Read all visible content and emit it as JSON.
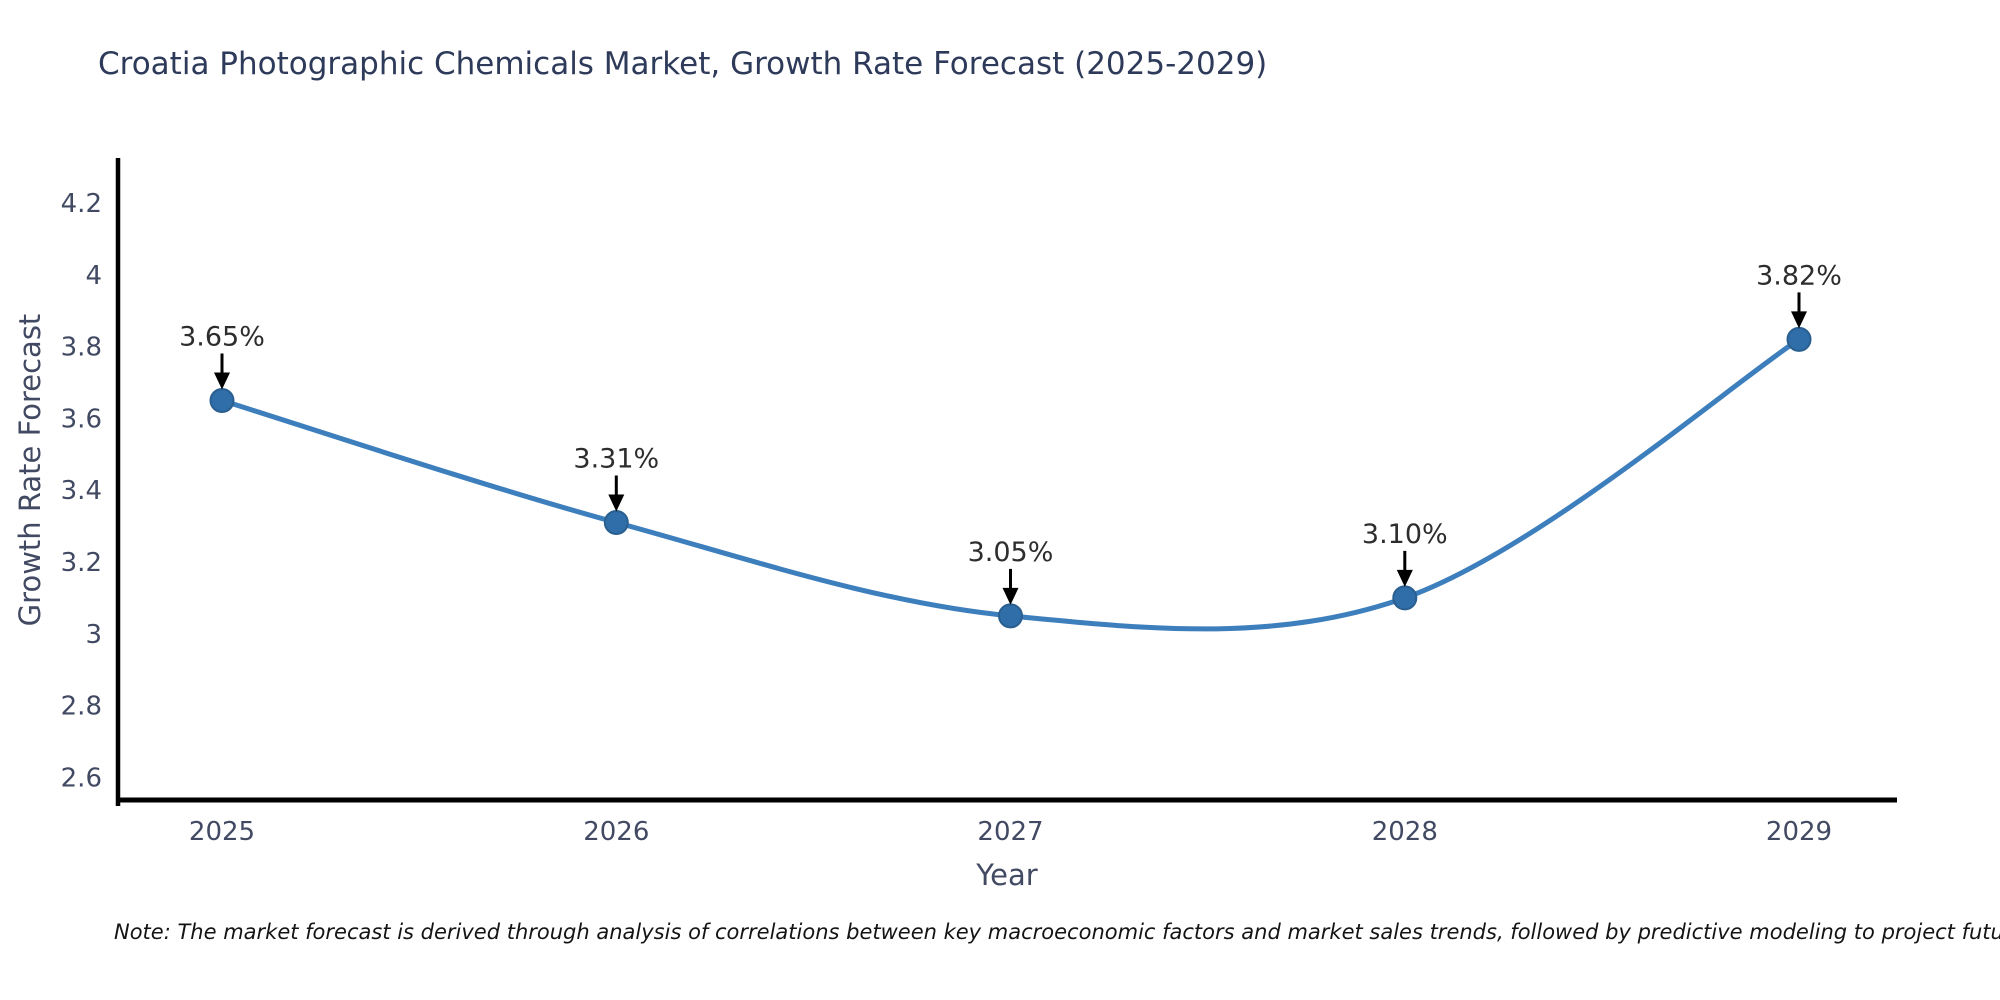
{
  "note": "Note: The market forecast is derived through analysis of correlations between key macroeconomic factors and market sales trends, followed by predictive modeling to project future sales",
  "chart_data": {
    "type": "line",
    "title": "Croatia Photographic Chemicals Market, Growth Rate Forecast (2025-2029)",
    "xlabel": "Year",
    "ylabel": "Growth Rate Forecast",
    "categories": [
      "2025",
      "2026",
      "2027",
      "2028",
      "2029"
    ],
    "values": [
      3.65,
      3.31,
      3.05,
      3.1,
      3.82
    ],
    "point_labels": [
      "3.65%",
      "3.31%",
      "3.05%",
      "3.10%",
      "3.82%"
    ],
    "yticks": [
      2.6,
      2.8,
      3,
      3.2,
      3.4,
      3.6,
      3.8,
      4,
      4.2
    ],
    "ytick_labels": [
      "2.6",
      "2.8",
      "3",
      "3.2",
      "3.4",
      "3.6",
      "3.8",
      "4",
      "4.2"
    ],
    "ylim": [
      2.54,
      4.32
    ],
    "grid": false,
    "legend": "none",
    "line_shape": "spline",
    "annotations": "arrow-down-to-point",
    "colors": {
      "line": "#3d7ebd",
      "marker": "#2f6ea9",
      "marker_edge": "#2a5f8f",
      "axis": "#000000",
      "tick_text": "#424a63",
      "annotation_text": "#2d2d2d",
      "arrow": "#000000",
      "background": "#ffffff"
    }
  }
}
